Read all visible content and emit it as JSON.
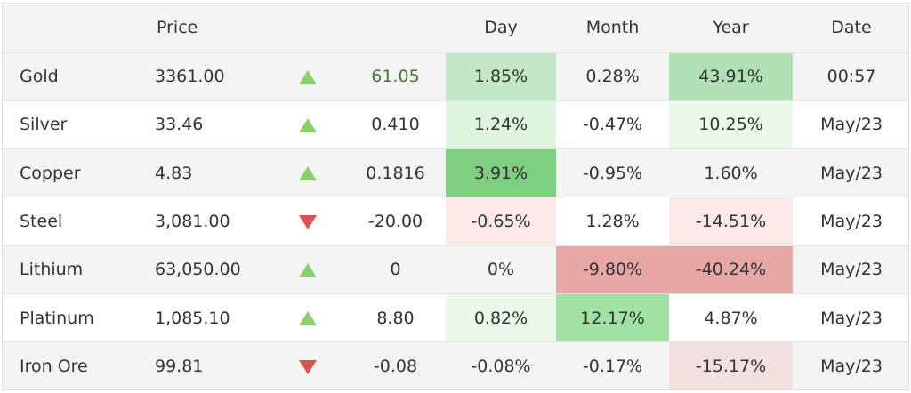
{
  "headers": {
    "name": "",
    "price": "Price",
    "day": "Day",
    "month": "Month",
    "year": "Year",
    "date": "Date"
  },
  "colors": {
    "up_arrow": "#8ccf6e",
    "down_arrow": "#d9534f",
    "positive_change_text": "#3d7d25"
  },
  "rows": [
    {
      "name": "Gold",
      "price": "3361.00",
      "direction": "up",
      "change": "61.05",
      "change_highlight": true,
      "day": "1.85%",
      "month": "0.28%",
      "year": "43.91%",
      "date": "00:57",
      "day_bg": "#c4e7c7",
      "month_bg": "",
      "year_bg": "#b2e0b5"
    },
    {
      "name": "Silver",
      "price": "33.46",
      "direction": "up",
      "change": "0.410",
      "change_highlight": false,
      "day": "1.24%",
      "month": "-0.47%",
      "year": "10.25%",
      "date": "May/23",
      "day_bg": "#def4df",
      "month_bg": "",
      "year_bg": "#ebf8eb"
    },
    {
      "name": "Copper",
      "price": "4.83",
      "direction": "up",
      "change": "0.1816",
      "change_highlight": false,
      "day": "3.91%",
      "month": "-0.95%",
      "year": "1.60%",
      "date": "May/23",
      "day_bg": "#7fce82",
      "month_bg": "",
      "year_bg": ""
    },
    {
      "name": "Steel",
      "price": "3,081.00",
      "direction": "down",
      "change": "-20.00",
      "change_highlight": false,
      "day": "-0.65%",
      "month": "1.28%",
      "year": "-14.51%",
      "date": "May/23",
      "day_bg": "#fbe9e9",
      "month_bg": "",
      "year_bg": "#fbe9e9"
    },
    {
      "name": "Lithium",
      "price": "63,050.00",
      "direction": "up",
      "change": "0",
      "change_highlight": false,
      "day": "0%",
      "month": "-9.80%",
      "year": "-40.24%",
      "date": "May/23",
      "day_bg": "",
      "month_bg": "#e7a7a7",
      "year_bg": "#e7a7a7"
    },
    {
      "name": "Platinum",
      "price": "1,085.10",
      "direction": "up",
      "change": "8.80",
      "change_highlight": false,
      "day": "0.82%",
      "month": "12.17%",
      "year": "4.87%",
      "date": "May/23",
      "day_bg": "#ecf8ec",
      "month_bg": "#a3e2a5",
      "year_bg": ""
    },
    {
      "name": "Iron Ore",
      "price": "99.81",
      "direction": "down",
      "change": "-0.08",
      "change_highlight": false,
      "day": "-0.08%",
      "month": "-0.17%",
      "year": "-15.17%",
      "date": "May/23",
      "day_bg": "",
      "month_bg": "",
      "year_bg": "#f3e0e0"
    }
  ]
}
